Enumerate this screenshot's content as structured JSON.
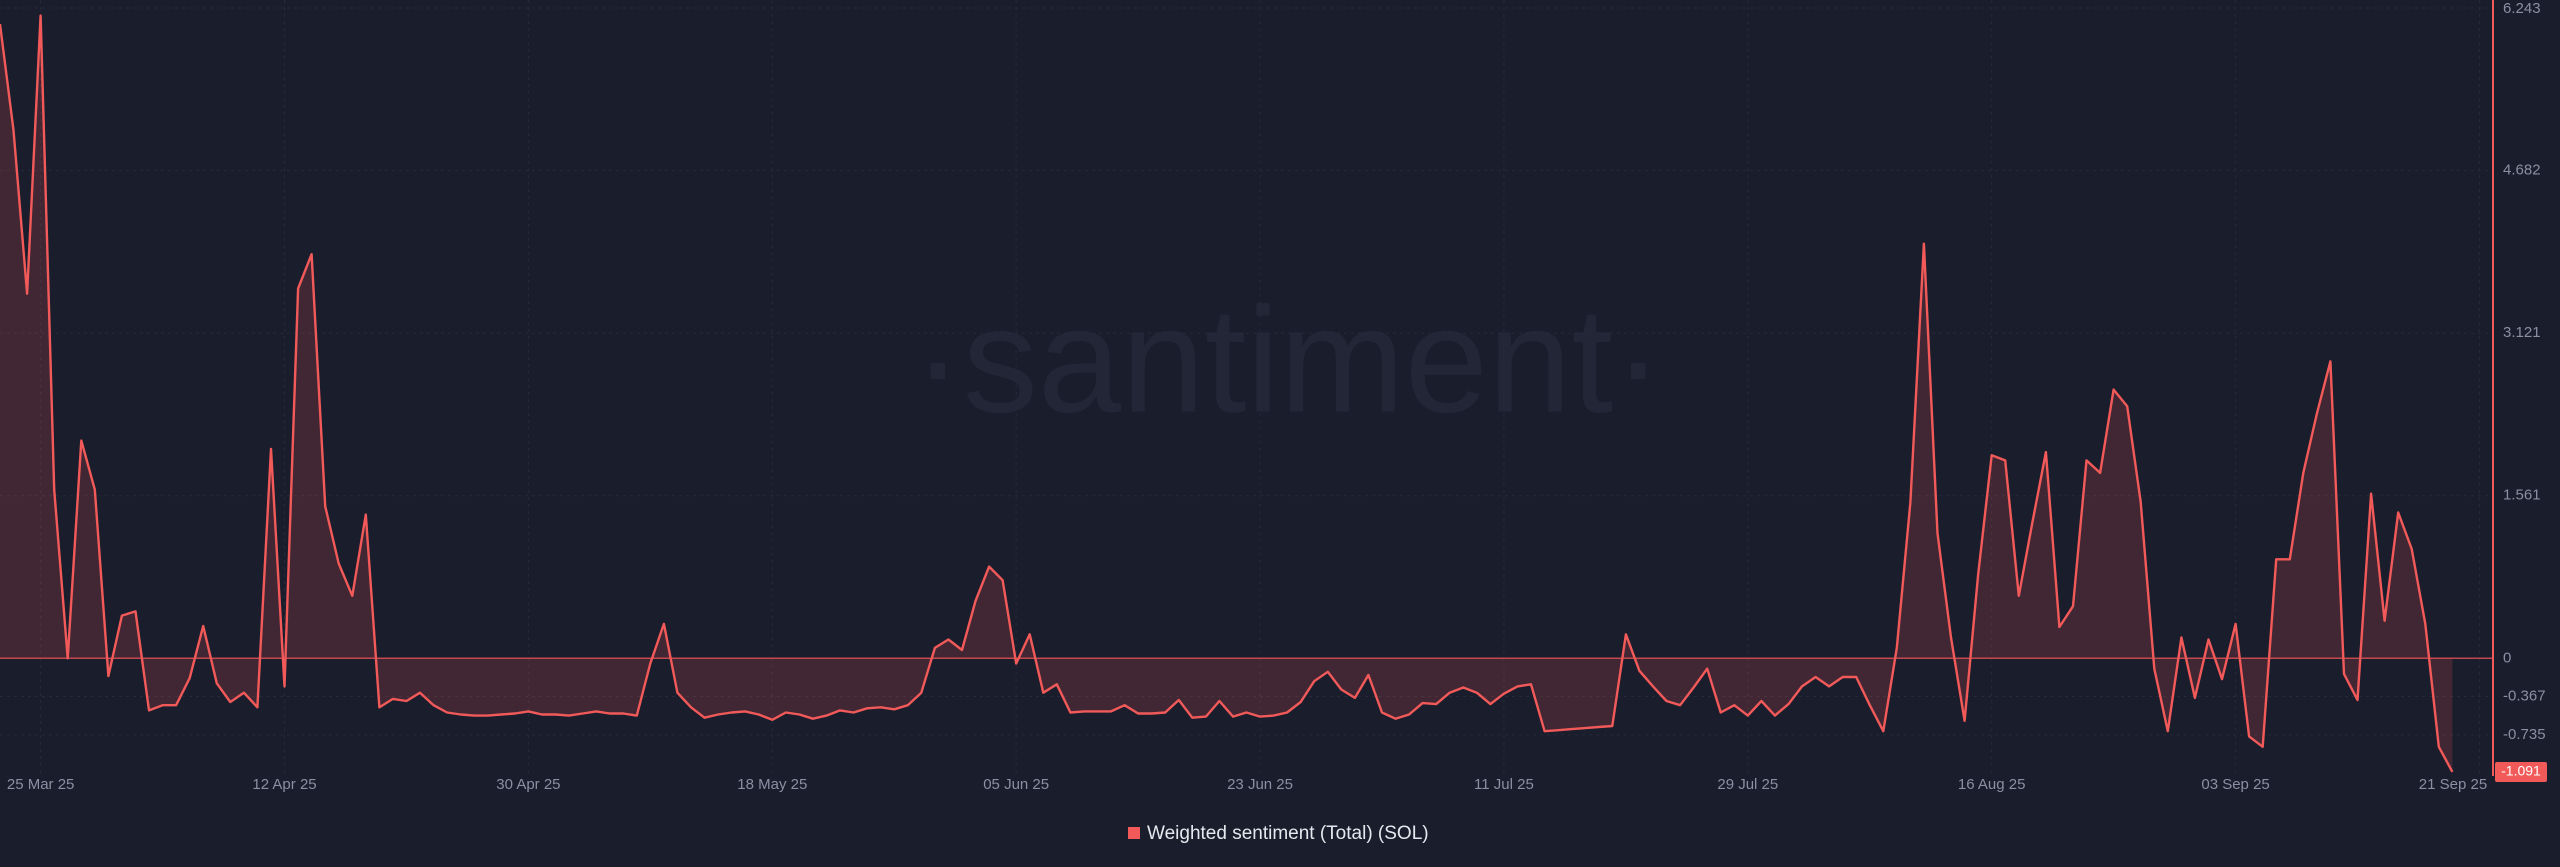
{
  "chart_data": {
    "type": "line",
    "watermark": "·santiment·",
    "x": [
      "2025-03-22",
      "2025-03-23",
      "2025-03-24",
      "2025-03-25",
      "2025-03-26",
      "2025-03-27",
      "2025-03-28",
      "2025-03-29",
      "2025-03-30",
      "2025-03-31",
      "2025-04-01",
      "2025-04-02",
      "2025-04-03",
      "2025-04-04",
      "2025-04-05",
      "2025-04-06",
      "2025-04-07",
      "2025-04-08",
      "2025-04-09",
      "2025-04-10",
      "2025-04-11",
      "2025-04-12",
      "2025-04-13",
      "2025-04-14",
      "2025-04-15",
      "2025-04-16",
      "2025-04-17",
      "2025-04-18",
      "2025-04-19",
      "2025-04-20",
      "2025-04-21",
      "2025-04-22",
      "2025-04-23",
      "2025-04-24",
      "2025-04-25",
      "2025-04-26",
      "2025-04-27",
      "2025-04-28",
      "2025-04-29",
      "2025-04-30",
      "2025-05-01",
      "2025-05-02",
      "2025-05-03",
      "2025-05-04",
      "2025-05-05",
      "2025-05-06",
      "2025-05-07",
      "2025-05-08",
      "2025-05-09",
      "2025-05-10",
      "2025-05-11",
      "2025-05-12",
      "2025-05-13",
      "2025-05-14",
      "2025-05-15",
      "2025-05-16",
      "2025-05-17",
      "2025-05-18",
      "2025-05-19",
      "2025-05-20",
      "2025-05-21",
      "2025-05-22",
      "2025-05-23",
      "2025-05-24",
      "2025-05-25",
      "2025-05-26",
      "2025-05-27",
      "2025-05-28",
      "2025-05-29",
      "2025-05-30",
      "2025-05-31",
      "2025-06-01",
      "2025-06-02",
      "2025-06-03",
      "2025-06-04",
      "2025-06-05",
      "2025-06-06",
      "2025-06-07",
      "2025-06-08",
      "2025-06-09",
      "2025-06-10",
      "2025-06-11",
      "2025-06-12",
      "2025-06-13",
      "2025-06-14",
      "2025-06-15",
      "2025-06-16",
      "2025-06-17",
      "2025-06-18",
      "2025-06-19",
      "2025-06-20",
      "2025-06-21",
      "2025-06-22",
      "2025-06-23",
      "2025-06-24",
      "2025-06-25",
      "2025-06-26",
      "2025-06-27",
      "2025-06-28",
      "2025-06-29",
      "2025-06-30",
      "2025-07-01",
      "2025-07-02",
      "2025-07-03",
      "2025-07-04",
      "2025-07-05",
      "2025-07-06",
      "2025-07-07",
      "2025-07-08",
      "2025-07-09",
      "2025-07-10",
      "2025-07-11",
      "2025-07-12",
      "2025-07-13",
      "2025-07-14",
      "2025-07-15",
      "2025-07-16",
      "2025-07-17",
      "2025-07-18",
      "2025-07-19",
      "2025-07-20",
      "2025-07-21",
      "2025-07-22",
      "2025-07-23",
      "2025-07-24",
      "2025-07-25",
      "2025-07-26",
      "2025-07-27",
      "2025-07-28",
      "2025-07-29",
      "2025-07-30",
      "2025-07-31",
      "2025-08-01",
      "2025-08-02",
      "2025-08-03",
      "2025-08-04",
      "2025-08-05",
      "2025-08-06",
      "2025-08-07",
      "2025-08-08",
      "2025-08-09",
      "2025-08-10",
      "2025-08-11",
      "2025-08-12",
      "2025-08-13",
      "2025-08-14",
      "2025-08-15",
      "2025-08-16",
      "2025-08-17",
      "2025-08-18",
      "2025-08-19",
      "2025-08-20",
      "2025-08-21",
      "2025-08-22",
      "2025-08-23",
      "2025-08-24",
      "2025-08-25",
      "2025-08-26",
      "2025-08-27",
      "2025-08-28",
      "2025-08-29",
      "2025-08-30",
      "2025-08-31",
      "2025-09-01",
      "2025-09-02",
      "2025-09-03",
      "2025-09-04",
      "2025-09-05",
      "2025-09-06",
      "2025-09-07",
      "2025-09-08",
      "2025-09-09",
      "2025-09-10",
      "2025-09-11",
      "2025-09-12",
      "2025-09-13",
      "2025-09-14",
      "2025-09-15",
      "2025-09-16",
      "2025-09-17",
      "2025-09-18",
      "2025-09-19"
    ],
    "series": [
      {
        "name": "Weighted sentiment (Total) (SOL)",
        "color": "#f25a5a",
        "values": [
          6.09,
          5.07,
          3.5,
          6.17,
          1.62,
          0,
          2.09,
          1.62,
          -0.17,
          0.41,
          0.45,
          -0.5,
          -0.45,
          -0.45,
          -0.19,
          0.31,
          -0.24,
          -0.42,
          -0.33,
          -0.47,
          2.01,
          -0.27,
          3.55,
          3.88,
          1.46,
          0.91,
          0.6,
          1.38,
          -0.47,
          -0.39,
          -0.41,
          -0.33,
          -0.45,
          -0.52,
          -0.54,
          -0.55,
          -0.55,
          -0.54,
          -0.53,
          -0.51,
          -0.54,
          -0.54,
          -0.55,
          -0.53,
          -0.51,
          -0.53,
          -0.53,
          -0.55,
          -0.05,
          0.33,
          -0.33,
          -0.47,
          -0.57,
          -0.54,
          -0.52,
          -0.51,
          -0.54,
          -0.59,
          -0.52,
          -0.54,
          -0.58,
          -0.55,
          -0.5,
          -0.52,
          -0.48,
          -0.47,
          -0.49,
          -0.45,
          -0.33,
          0.1,
          0.18,
          0.08,
          0.55,
          0.88,
          0.75,
          -0.05,
          0.23,
          -0.33,
          -0.25,
          -0.52,
          -0.51,
          -0.51,
          -0.51,
          -0.45,
          -0.53,
          -0.53,
          -0.52,
          -0.4,
          -0.57,
          -0.56,
          -0.41,
          -0.56,
          -0.52,
          -0.56,
          -0.55,
          -0.52,
          -0.42,
          -0.22,
          -0.13,
          -0.3,
          -0.38,
          -0.16,
          -0.52,
          -0.58,
          -0.54,
          -0.43,
          -0.44,
          -0.33,
          -0.28,
          -0.33,
          -0.44,
          -0.34,
          -0.27,
          -0.25,
          -0.7,
          -0.69,
          -0.68,
          -0.67,
          -0.66,
          -0.65,
          0.23,
          -0.12,
          -0.27,
          -0.41,
          -0.45,
          -0.28,
          -0.1,
          -0.52,
          -0.45,
          -0.55,
          -0.41,
          -0.55,
          -0.44,
          -0.27,
          -0.18,
          -0.27,
          -0.18,
          -0.18,
          -0.45,
          -0.7,
          0.1,
          1.5,
          3.98,
          1.2,
          0.2,
          -0.6,
          0.8,
          1.95,
          1.9,
          0.6,
          1.3,
          1.98,
          0.3,
          0.5,
          1.9,
          1.78,
          2.58,
          2.42,
          1.5,
          -0.1,
          -0.7,
          0.2,
          -0.38,
          0.18,
          -0.2,
          0.33,
          -0.75,
          -0.85,
          0.95,
          0.95,
          1.78,
          2.35,
          2.85,
          -0.15,
          -0.4,
          1.58,
          0.36,
          1.4,
          1.05,
          0.33,
          -0.85,
          -1.091
        ]
      }
    ],
    "xlim": [
      "2025-03-22",
      "2025-09-22"
    ],
    "xticks": [
      {
        "value": "2025-03-25",
        "label": "25 Mar 25"
      },
      {
        "value": "2025-04-12",
        "label": "12 Apr 25"
      },
      {
        "value": "2025-04-30",
        "label": "30 Apr 25"
      },
      {
        "value": "2025-05-18",
        "label": "18 May 25"
      },
      {
        "value": "2025-06-05",
        "label": "05 Jun 25"
      },
      {
        "value": "2025-06-23",
        "label": "23 Jun 25"
      },
      {
        "value": "2025-07-11",
        "label": "11 Jul 25"
      },
      {
        "value": "2025-07-29",
        "label": "29 Jul 25"
      },
      {
        "value": "2025-08-16",
        "label": "16 Aug 25"
      },
      {
        "value": "2025-09-03",
        "label": "03 Sep 25"
      },
      {
        "value": "2025-09-21",
        "label": "21 Sep 25"
      }
    ],
    "ylim": [
      -1.13,
      6.32
    ],
    "yticks": [
      6.243,
      4.682,
      3.121,
      1.561,
      0,
      -0.367,
      -0.735
    ],
    "grid": true
  }
}
